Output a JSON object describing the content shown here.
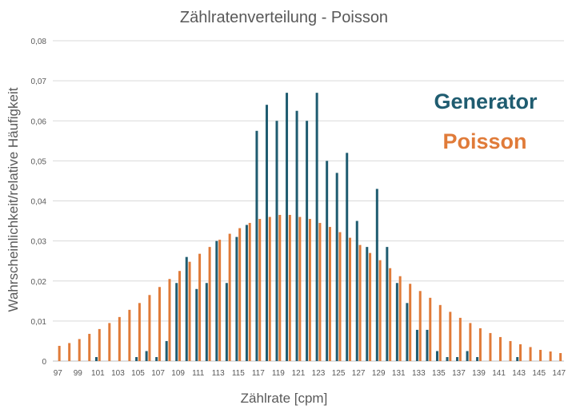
{
  "chart_data": {
    "type": "bar",
    "title": "Zählratenverteilung - Poisson",
    "xlabel": "Zählrate [cpm]",
    "ylabel": "Wahrscheinlichkeit/relative Häufigkeit",
    "ylim": [
      0,
      0.08
    ],
    "y_ticks": [
      "0",
      "0,01",
      "0,02",
      "0,03",
      "0,04",
      "0,05",
      "0,06",
      "0,07",
      "0,08"
    ],
    "x_tick_labels": [
      "97",
      "99",
      "101",
      "103",
      "105",
      "107",
      "109",
      "111",
      "113",
      "115",
      "117",
      "119",
      "121",
      "123",
      "125",
      "127",
      "129",
      "131",
      "133",
      "135",
      "137",
      "139",
      "141",
      "143",
      "145",
      "147"
    ],
    "grid": true,
    "legend_position": "right",
    "categories": [
      97,
      98,
      99,
      100,
      101,
      102,
      103,
      104,
      105,
      106,
      107,
      108,
      109,
      110,
      111,
      112,
      113,
      114,
      115,
      116,
      117,
      118,
      119,
      120,
      121,
      122,
      123,
      124,
      125,
      126,
      127,
      128,
      129,
      130,
      131,
      132,
      133,
      134,
      135,
      136,
      137,
      138,
      139,
      140,
      141,
      142,
      143,
      144,
      145,
      146,
      147
    ],
    "series": [
      {
        "name": "Generator",
        "color": "#1f5c70",
        "values": [
          0,
          0,
          0,
          0,
          0.001,
          0,
          0,
          0,
          0.001,
          0.0025,
          0.001,
          0.005,
          0.0195,
          0.026,
          0.018,
          0.0195,
          0.03,
          0.0195,
          0.031,
          0.034,
          0.0575,
          0.064,
          0.06,
          0.067,
          0.0625,
          0.06,
          0.067,
          0.05,
          0.047,
          0.052,
          0.035,
          0.0285,
          0.043,
          0.0285,
          0.0195,
          0.0145,
          0.0078,
          0.0078,
          0.0025,
          0.001,
          0.001,
          0.0025,
          0.001,
          0,
          0,
          0,
          0.001,
          0,
          0,
          0,
          0
        ]
      },
      {
        "name": "Poisson",
        "color": "#e07b39",
        "values": [
          0.0038,
          0.0045,
          0.0055,
          0.0068,
          0.008,
          0.0095,
          0.011,
          0.0128,
          0.0145,
          0.0165,
          0.0185,
          0.0205,
          0.0225,
          0.0248,
          0.0268,
          0.0285,
          0.0303,
          0.0318,
          0.0332,
          0.0345,
          0.0355,
          0.036,
          0.0365,
          0.0365,
          0.036,
          0.0355,
          0.0345,
          0.0335,
          0.0322,
          0.0308,
          0.029,
          0.027,
          0.0252,
          0.0232,
          0.0212,
          0.0193,
          0.0175,
          0.0158,
          0.014,
          0.0123,
          0.0108,
          0.0095,
          0.0082,
          0.007,
          0.006,
          0.005,
          0.0042,
          0.0035,
          0.0028,
          0.0024,
          0.002
        ]
      }
    ]
  }
}
